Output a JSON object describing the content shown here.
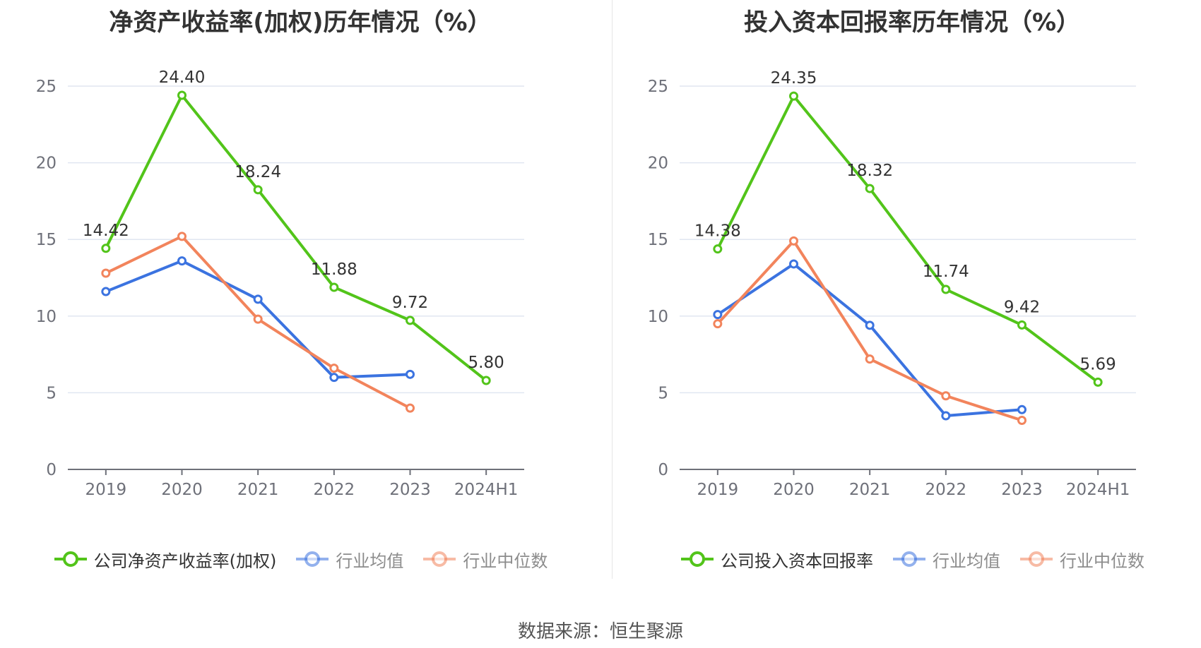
{
  "source_text": "数据来源：恒生聚源",
  "chart_data": [
    {
      "type": "line",
      "title": "净资产收益率(加权)历年情况（%）",
      "categories": [
        "2019",
        "2020",
        "2021",
        "2022",
        "2023",
        "2024H1"
      ],
      "ylim": [
        0,
        25
      ],
      "yticks": [
        0,
        5,
        10,
        15,
        20,
        25
      ],
      "grid": true,
      "legend_position": "bottom",
      "series": [
        {
          "name": "公司净资产收益率(加权)",
          "color": "#52c41a",
          "values": [
            14.42,
            24.4,
            18.24,
            11.88,
            9.72,
            5.8
          ],
          "labels": [
            "14.42",
            "24.40",
            "18.24",
            "11.88",
            "9.72",
            "5.80"
          ]
        },
        {
          "name": "行业均值",
          "color": "#3b73e0",
          "values": [
            11.6,
            13.6,
            11.1,
            6.0,
            6.2,
            null
          ]
        },
        {
          "name": "行业中位数",
          "color": "#f2845c",
          "values": [
            12.8,
            15.2,
            9.8,
            6.6,
            4.0,
            null
          ]
        }
      ]
    },
    {
      "type": "line",
      "title": "投入资本回报率历年情况（%）",
      "categories": [
        "2019",
        "2020",
        "2021",
        "2022",
        "2023",
        "2024H1"
      ],
      "ylim": [
        0,
        25
      ],
      "yticks": [
        0,
        5,
        10,
        15,
        20,
        25
      ],
      "grid": true,
      "legend_position": "bottom",
      "series": [
        {
          "name": "公司投入资本回报率",
          "color": "#52c41a",
          "values": [
            14.38,
            24.35,
            18.32,
            11.74,
            9.42,
            5.69
          ],
          "labels": [
            "14.38",
            "24.35",
            "18.32",
            "11.74",
            "9.42",
            "5.69"
          ]
        },
        {
          "name": "行业均值",
          "color": "#3b73e0",
          "values": [
            10.1,
            13.4,
            9.4,
            3.5,
            3.9,
            null
          ]
        },
        {
          "name": "行业中位数",
          "color": "#f2845c",
          "values": [
            9.5,
            14.9,
            7.2,
            4.8,
            3.2,
            null
          ]
        }
      ]
    }
  ]
}
